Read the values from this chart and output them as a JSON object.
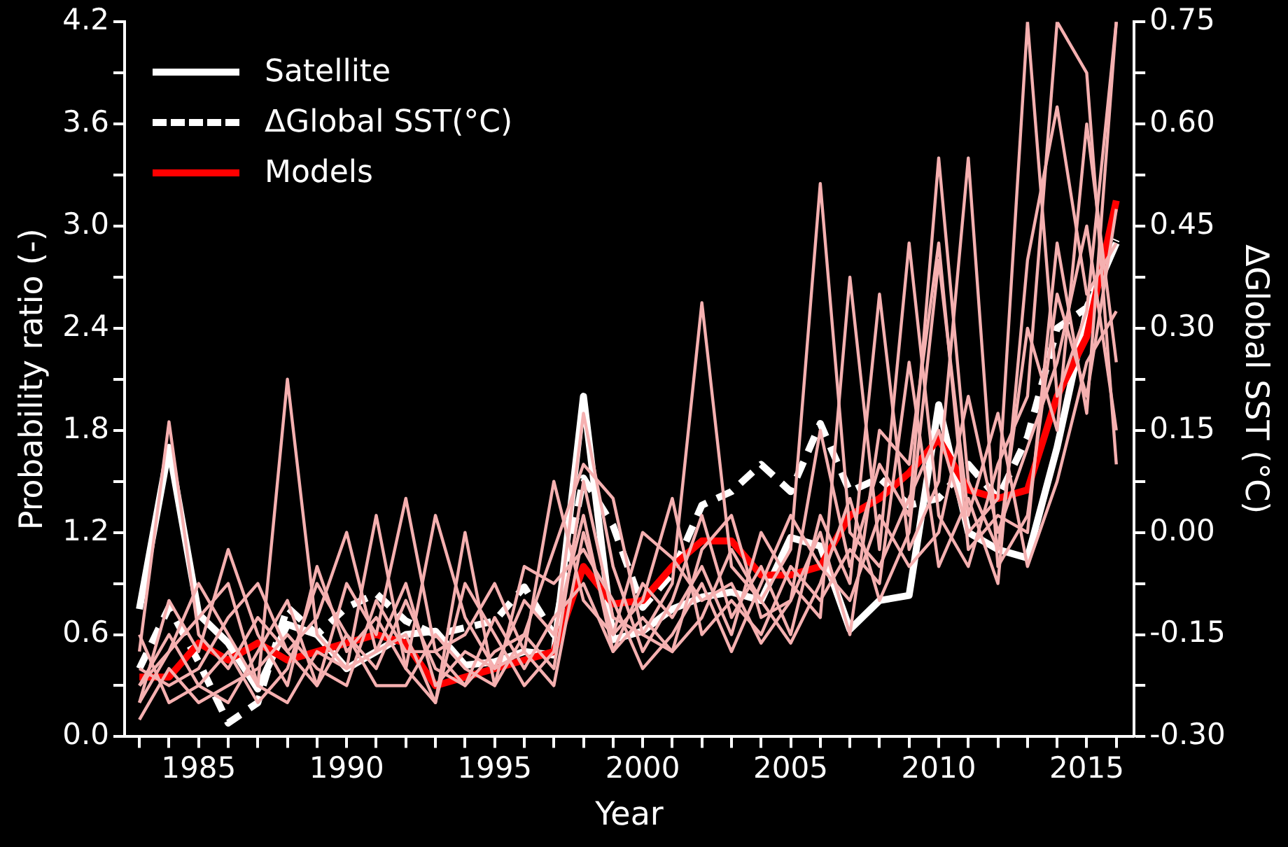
{
  "chart_data": {
    "type": "line",
    "xlabel": "Year",
    "ylabel": "Probability ratio (-)",
    "y2label": "ΔGlobal SST (°C)",
    "x": [
      1983,
      1984,
      1985,
      1986,
      1987,
      1988,
      1989,
      1990,
      1991,
      1992,
      1993,
      1994,
      1995,
      1996,
      1997,
      1998,
      1999,
      2000,
      2001,
      2002,
      2003,
      2004,
      2005,
      2006,
      2007,
      2008,
      2009,
      2010,
      2011,
      2012,
      2013,
      2014,
      2015,
      2016
    ],
    "xlim": [
      1982.5,
      2016.6
    ],
    "xticks": [
      {
        "value": 1983,
        "label": null
      },
      {
        "value": 1984,
        "label": null
      },
      1985,
      {
        "value": 1986,
        "label": null
      },
      {
        "value": 1987,
        "label": null
      },
      {
        "value": 1988,
        "label": null
      },
      {
        "value": 1989,
        "label": null
      },
      1990,
      {
        "value": 1991,
        "label": null
      },
      {
        "value": 1992,
        "label": null
      },
      {
        "value": 1993,
        "label": null
      },
      {
        "value": 1994,
        "label": null
      },
      1995,
      {
        "value": 1996,
        "label": null
      },
      {
        "value": 1997,
        "label": null
      },
      {
        "value": 1998,
        "label": null
      },
      {
        "value": 1999,
        "label": null
      },
      2000,
      {
        "value": 2001,
        "label": null
      },
      {
        "value": 2002,
        "label": null
      },
      {
        "value": 2003,
        "label": null
      },
      {
        "value": 2004,
        "label": null
      },
      2005,
      {
        "value": 2006,
        "label": null
      },
      {
        "value": 2007,
        "label": null
      },
      {
        "value": 2008,
        "label": null
      },
      {
        "value": 2009,
        "label": null
      },
      2010,
      {
        "value": 2011,
        "label": null
      },
      {
        "value": 2012,
        "label": null
      },
      {
        "value": 2013,
        "label": null
      },
      {
        "value": 2014,
        "label": null
      },
      2015,
      {
        "value": 2016,
        "label": null
      }
    ],
    "ylim": [
      0,
      4.2
    ],
    "yticks": [
      {
        "value": 0,
        "label": "0.0"
      },
      {
        "value": 0.3,
        "label": null
      },
      {
        "value": 0.6,
        "label": "0.6"
      },
      {
        "value": 0.9,
        "label": null
      },
      {
        "value": 1.2,
        "label": "1.2"
      },
      {
        "value": 1.5,
        "label": null
      },
      {
        "value": 1.8,
        "label": "1.8"
      },
      {
        "value": 2.1,
        "label": null
      },
      {
        "value": 2.4,
        "label": "2.4"
      },
      {
        "value": 2.7,
        "label": null
      },
      {
        "value": 3.0,
        "label": "3.0"
      },
      {
        "value": 3.3,
        "label": null
      },
      {
        "value": 3.6,
        "label": "3.6"
      },
      {
        "value": 3.9,
        "label": null
      },
      {
        "value": 4.2,
        "label": "4.2"
      }
    ],
    "y2lim": [
      -0.3,
      0.75
    ],
    "y2ticks": [
      {
        "value": -0.3,
        "label": "-0.30"
      },
      {
        "value": -0.225,
        "label": null
      },
      {
        "value": -0.15,
        "label": "-0.15"
      },
      {
        "value": -0.075,
        "label": null
      },
      {
        "value": 0,
        "label": "0.00"
      },
      {
        "value": 0.075,
        "label": null
      },
      {
        "value": 0.15,
        "label": "0.15"
      },
      {
        "value": 0.225,
        "label": null
      },
      {
        "value": 0.3,
        "label": "0.30"
      },
      {
        "value": 0.375,
        "label": null
      },
      {
        "value": 0.45,
        "label": "0.45"
      },
      {
        "value": 0.525,
        "label": null
      },
      {
        "value": 0.6,
        "label": "0.60"
      },
      {
        "value": 0.675,
        "label": null
      },
      {
        "value": 0.75,
        "label": "0.75"
      }
    ],
    "grid": false,
    "legend": "top left",
    "marker": "none",
    "series": [
      {
        "color": "#f5b0b0",
        "values": [
          0.5,
          1.85,
          0.6,
          0.4,
          0.7,
          0.5,
          0.3,
          0.6,
          0.4,
          0.8,
          0.4,
          0.3,
          0.5,
          0.6,
          0.4,
          1.5,
          0.7,
          0.6,
          0.9,
          2.55,
          1.0,
          0.8,
          1.1,
          3.25,
          1.2,
          1.0,
          1.4,
          1.8,
          1.2,
          1.4,
          4.2,
          2.0,
          2.5,
          4.2
        ]
      },
      {
        "color": "#f5b0b0",
        "values": [
          0.3,
          0.5,
          0.9,
          0.6,
          0.3,
          2.1,
          0.6,
          0.4,
          0.5,
          0.9,
          0.3,
          0.5,
          0.4,
          0.8,
          0.6,
          1.3,
          0.5,
          0.9,
          0.7,
          1.0,
          0.6,
          1.2,
          0.9,
          0.7,
          2.7,
          1.1,
          2.9,
          1.3,
          1.0,
          1.6,
          2.0,
          4.2,
          3.9,
          1.6
        ]
      },
      {
        "color": "#f5b0b0",
        "values": [
          0.2,
          0.8,
          0.5,
          1.1,
          0.6,
          0.3,
          1.0,
          0.5,
          0.7,
          0.4,
          1.3,
          0.7,
          0.4,
          0.5,
          1.5,
          0.8,
          0.6,
          1.2,
          1.05,
          0.8,
          0.9,
          0.55,
          0.8,
          1.8,
          1.0,
          1.6,
          1.3,
          3.4,
          1.5,
          1.1,
          2.4,
          1.8,
          3.6,
          2.2
        ]
      },
      {
        "color": "#f5b0b0",
        "values": [
          0.4,
          0.3,
          0.4,
          0.7,
          0.9,
          0.5,
          0.7,
          1.2,
          0.5,
          0.6,
          0.2,
          0.9,
          0.6,
          0.3,
          0.5,
          1.9,
          1.0,
          0.5,
          0.8,
          1.3,
          0.7,
          1.0,
          0.6,
          1.3,
          0.9,
          2.6,
          1.1,
          1.5,
          3.4,
          1.0,
          1.3,
          2.6,
          2.0,
          3.1
        ]
      },
      {
        "color": "#f5b0b0",
        "values": [
          0.1,
          0.4,
          0.2,
          0.3,
          0.4,
          0.6,
          0.4,
          0.3,
          0.8,
          0.5,
          0.5,
          0.3,
          0.7,
          0.4,
          0.7,
          0.9,
          0.5,
          0.7,
          0.5,
          0.7,
          1.1,
          0.8,
          0.55,
          0.9,
          1.4,
          0.8,
          1.2,
          2.8,
          1.3,
          1.9,
          1.0,
          1.5,
          2.2,
          2.5
        ]
      },
      {
        "color": "#f5b0b0",
        "values": [
          0.6,
          0.2,
          0.3,
          0.5,
          0.2,
          0.4,
          0.9,
          0.6,
          0.3,
          0.3,
          0.6,
          0.4,
          0.3,
          1.0,
          0.9,
          1.1,
          0.8,
          0.4,
          0.6,
          0.9,
          0.5,
          0.9,
          1.3,
          1.0,
          0.8,
          1.3,
          1.0,
          1.2,
          2.0,
          1.2,
          1.7,
          2.2,
          3.0,
          1.8
        ]
      },
      {
        "color": "#f5b0b0",
        "values": [
          0.3,
          0.6,
          0.3,
          0.2,
          0.5,
          0.8,
          0.3,
          0.9,
          0.6,
          1.4,
          0.5,
          0.6,
          0.9,
          0.5,
          0.3,
          1.2,
          0.6,
          0.8,
          1.4,
          0.6,
          0.8,
          0.6,
          1.0,
          0.8,
          1.1,
          0.9,
          2.2,
          1.0,
          1.4,
          0.9,
          2.8,
          3.7,
          2.6,
          2.9
        ]
      },
      {
        "color": "#f5b0b0",
        "values": [
          0.2,
          0.5,
          0.7,
          0.9,
          0.3,
          0.2,
          0.5,
          0.4,
          1.3,
          0.4,
          0.2,
          1.2,
          0.3,
          0.6,
          1.1,
          1.6,
          1.4,
          0.6,
          0.5,
          1.1,
          1.3,
          0.7,
          0.8,
          1.2,
          0.6,
          1.8,
          1.6,
          2.9,
          1.1,
          1.3,
          1.2,
          2.9,
          1.9,
          4.2
        ]
      },
      {
        "name": "Models",
        "color": "#ff0000",
        "values": [
          0.35,
          0.35,
          0.55,
          0.45,
          0.55,
          0.45,
          0.5,
          0.55,
          0.6,
          0.55,
          0.3,
          0.35,
          0.4,
          0.45,
          0.5,
          1.0,
          0.78,
          0.8,
          1.0,
          1.15,
          1.15,
          0.95,
          0.95,
          1.0,
          1.3,
          1.4,
          1.55,
          1.75,
          1.45,
          1.4,
          1.45,
          2.0,
          2.35,
          3.15
        ]
      },
      {
        "name": "ΔGlobal SST(°C)",
        "color": "#ffffff",
        "axis": "y2",
        "line_style": "dashed",
        "values": [
          -0.2,
          -0.11,
          -0.19,
          -0.28,
          -0.25,
          -0.11,
          -0.15,
          -0.11,
          -0.09,
          -0.13,
          -0.15,
          -0.14,
          -0.13,
          -0.08,
          -0.15,
          0.08,
          0.01,
          -0.11,
          -0.06,
          0.04,
          0.06,
          0.1,
          0.06,
          0.16,
          0.06,
          0.08,
          0.04,
          0.05,
          0.1,
          0.05,
          0.14,
          0.3,
          0.33,
          0.43
        ]
      },
      {
        "name": "Satellite",
        "color": "#ffffff",
        "values": [
          0.75,
          1.7,
          0.72,
          0.55,
          0.28,
          0.66,
          0.6,
          0.4,
          0.5,
          0.6,
          0.62,
          0.42,
          0.44,
          0.5,
          0.48,
          2.0,
          0.57,
          0.62,
          0.75,
          0.82,
          0.85,
          0.8,
          1.17,
          1.12,
          0.63,
          0.8,
          0.83,
          1.95,
          1.2,
          1.1,
          1.05,
          1.7,
          2.5,
          2.9
        ]
      }
    ]
  }
}
